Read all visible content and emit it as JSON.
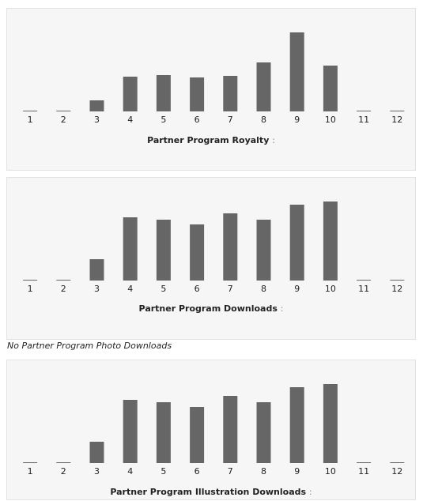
{
  "chart_data": [
    {
      "type": "bar",
      "title": "Partner Program Royalty",
      "title_suffix": ":",
      "categories": [
        "1",
        "2",
        "3",
        "4",
        "5",
        "6",
        "7",
        "8",
        "9",
        "10",
        "11",
        "12"
      ],
      "values": [
        0,
        0,
        14,
        44,
        46,
        43,
        45,
        62,
        100,
        58,
        0,
        0
      ],
      "ylim": [
        0,
        100
      ],
      "grid": false,
      "color": "#666666"
    },
    {
      "type": "bar",
      "title": "Partner Program Downloads",
      "title_suffix": ":",
      "categories": [
        "1",
        "2",
        "3",
        "4",
        "5",
        "6",
        "7",
        "8",
        "9",
        "10",
        "11",
        "12"
      ],
      "values": [
        0,
        0,
        27,
        80,
        77,
        71,
        85,
        77,
        96,
        100,
        0,
        0
      ],
      "ylim": [
        0,
        100
      ],
      "grid": false,
      "color": "#666666"
    },
    {
      "type": "bar",
      "title": "Partner Program Illustration Downloads",
      "title_suffix": ":",
      "categories": [
        "1",
        "2",
        "3",
        "4",
        "5",
        "6",
        "7",
        "8",
        "9",
        "10",
        "11",
        "12"
      ],
      "values": [
        0,
        0,
        27,
        80,
        77,
        71,
        85,
        77,
        96,
        100,
        0,
        0
      ],
      "ylim": [
        0,
        100
      ],
      "grid": false,
      "color": "#666666"
    }
  ],
  "note": "No Partner Program Photo Downloads"
}
